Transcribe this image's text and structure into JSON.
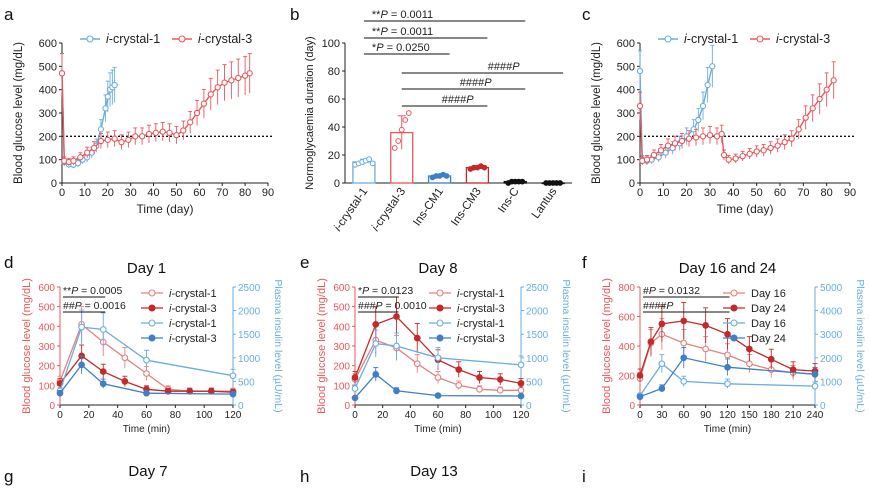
{
  "colors": {
    "red": "#e8585c",
    "blue": "#6aaee0",
    "darkred": "#c42a2a",
    "deepblue": "#3f7fc6",
    "pink": "#e68080",
    "black": "#111111",
    "axis": "#222222"
  },
  "chart_data": [
    {
      "id": "a",
      "panel_label": "a",
      "type": "line",
      "title": "",
      "xlabel": "Time (day)",
      "ylabel": "Blood glucose level (mg/dL)",
      "xlim": [
        0,
        90
      ],
      "ylim": [
        0,
        600
      ],
      "xticks": [
        "0",
        "10",
        "20",
        "30",
        "40",
        "50",
        "60",
        "70",
        "80",
        "90"
      ],
      "yticks": [
        "0",
        "100",
        "200",
        "300",
        "400",
        "500",
        "600"
      ],
      "xtick_values": [
        0,
        10,
        20,
        30,
        40,
        50,
        60,
        70,
        80,
        90
      ],
      "ytick_values": [
        0,
        100,
        200,
        300,
        400,
        500,
        600
      ],
      "threshold": 200,
      "legend": [
        "i-crystal-1",
        "i-crystal-3"
      ],
      "series": [
        {
          "name": "i-crystal-1",
          "color": "blue",
          "points": [
            [
              0,
              470
            ],
            [
              1,
              90
            ],
            [
              3,
              80
            ],
            [
              5,
              78
            ],
            [
              7,
              85
            ],
            [
              9,
              100
            ],
            [
              11,
              110
            ],
            [
              13,
              130
            ],
            [
              15,
              160
            ],
            [
              17,
              230
            ],
            [
              19,
              320
            ],
            [
              20,
              370
            ],
            [
              21,
              400
            ],
            [
              22,
              410
            ],
            [
              23,
              420
            ]
          ]
        },
        {
          "name": "i-crystal-3",
          "color": "red",
          "points": [
            [
              0,
              470
            ],
            [
              1,
              95
            ],
            [
              3,
              90
            ],
            [
              5,
              95
            ],
            [
              8,
              110
            ],
            [
              11,
              130
            ],
            [
              14,
              150
            ],
            [
              17,
              180
            ],
            [
              20,
              185
            ],
            [
              23,
              190
            ],
            [
              26,
              175
            ],
            [
              29,
              185
            ],
            [
              32,
              200
            ],
            [
              35,
              200
            ],
            [
              38,
              210
            ],
            [
              41,
              215
            ],
            [
              44,
              220
            ],
            [
              47,
              215
            ],
            [
              50,
              205
            ],
            [
              53,
              225
            ],
            [
              56,
              260
            ],
            [
              59,
              300
            ],
            [
              62,
              340
            ],
            [
              65,
              380
            ],
            [
              68,
              410
            ],
            [
              71,
              430
            ],
            [
              74,
              440
            ],
            [
              77,
              450
            ],
            [
              80,
              460
            ],
            [
              82,
              470
            ]
          ]
        }
      ]
    },
    {
      "id": "b",
      "panel_label": "b",
      "type": "bar",
      "ylabel": "Normoglycaemia duration (day)",
      "ylim": [
        0,
        100
      ],
      "yticks": [
        "0",
        "20",
        "40",
        "60",
        "80",
        "100"
      ],
      "ytick_values": [
        0,
        20,
        40,
        60,
        80,
        100
      ],
      "categories": [
        "i-crystal-1",
        "i-crystal-3",
        "Ins-CM1",
        "Ins-CM3",
        "Ins-C",
        "Lantus"
      ],
      "values": [
        15,
        36,
        5,
        11,
        1,
        0
      ],
      "errors": [
        2,
        12,
        1,
        1,
        0.5,
        0.3
      ],
      "bar_colors": [
        "blue",
        "red",
        "deepblue",
        "darkred",
        "black",
        "black"
      ],
      "dots": [
        [
          13,
          14,
          15,
          16,
          17,
          14
        ],
        [
          25,
          30,
          38,
          45,
          50
        ],
        [
          4,
          5,
          5,
          6,
          5
        ],
        [
          10,
          11,
          11,
          12,
          11
        ],
        [
          0,
          1,
          1,
          1,
          1
        ],
        [
          0,
          0,
          0,
          0,
          0
        ]
      ],
      "significance": [
        "**P = 0.0011",
        "**P = 0.0011",
        "*P = 0.0250",
        "####P",
        "####P",
        "####P"
      ]
    },
    {
      "id": "c",
      "panel_label": "c",
      "type": "line",
      "xlabel": "Time (day)",
      "ylabel": "Blood glucose level (mg/dL)",
      "xlim": [
        0,
        90
      ],
      "ylim": [
        0,
        600
      ],
      "xticks": [
        "0",
        "10",
        "20",
        "30",
        "40",
        "50",
        "60",
        "70",
        "80",
        "90"
      ],
      "yticks": [
        "0",
        "100",
        "200",
        "300",
        "400",
        "500",
        "600"
      ],
      "xtick_values": [
        0,
        10,
        20,
        30,
        40,
        50,
        60,
        70,
        80,
        90
      ],
      "ytick_values": [
        0,
        100,
        200,
        300,
        400,
        500,
        600
      ],
      "threshold": 200,
      "legend": [
        "i-crystal-1",
        "i-crystal-3"
      ],
      "series": [
        {
          "name": "i-crystal-1",
          "color": "blue",
          "points": [
            [
              0,
              480
            ],
            [
              1,
              100
            ],
            [
              3,
              95
            ],
            [
              5,
              100
            ],
            [
              8,
              110
            ],
            [
              11,
              130
            ],
            [
              14,
              150
            ],
            [
              17,
              170
            ],
            [
              20,
              200
            ],
            [
              23,
              230
            ],
            [
              25,
              270
            ],
            [
              27,
              330
            ],
            [
              29,
              420
            ],
            [
              31,
              500
            ]
          ]
        },
        {
          "name": "i-crystal-3",
          "color": "red",
          "points": [
            [
              0,
              330
            ],
            [
              1,
              95
            ],
            [
              3,
              100
            ],
            [
              6,
              120
            ],
            [
              9,
              140
            ],
            [
              12,
              160
            ],
            [
              15,
              170
            ],
            [
              18,
              180
            ],
            [
              21,
              190
            ],
            [
              24,
              195
            ],
            [
              27,
              200
            ],
            [
              30,
              205
            ],
            [
              33,
              200
            ],
            [
              35,
              210
            ],
            [
              36,
              120
            ],
            [
              38,
              100
            ],
            [
              41,
              105
            ],
            [
              44,
              115
            ],
            [
              47,
              125
            ],
            [
              50,
              135
            ],
            [
              53,
              140
            ],
            [
              56,
              150
            ],
            [
              59,
              160
            ],
            [
              62,
              175
            ],
            [
              65,
              190
            ],
            [
              68,
              230
            ],
            [
              71,
              280
            ],
            [
              74,
              320
            ],
            [
              77,
              360
            ],
            [
              80,
              400
            ],
            [
              83,
              440
            ]
          ]
        }
      ]
    },
    {
      "id": "d",
      "panel_label": "d",
      "type": "line",
      "title": "Day 1",
      "xlabel": "Time (min)",
      "ylabel": "Blood glucose level (mg/dL)",
      "ylabel2": "Plasma insulin level (µU/mL)",
      "xlim": [
        0,
        120
      ],
      "ylim": [
        0,
        600
      ],
      "ylim2": [
        0,
        2500
      ],
      "xticks": [
        "0",
        "20",
        "40",
        "60",
        "80",
        "100",
        "120"
      ],
      "xtick_values": [
        0,
        20,
        40,
        60,
        80,
        100,
        120
      ],
      "yticks": [
        "0",
        "100",
        "200",
        "300",
        "400",
        "500",
        "600"
      ],
      "ytick_values": [
        0,
        100,
        200,
        300,
        400,
        500,
        600
      ],
      "yticks2": [
        "0",
        "500",
        "1000",
        "1500",
        "2000",
        "2500"
      ],
      "ytick2_values": [
        0,
        500,
        1000,
        1500,
        2000,
        2500
      ],
      "annotations": [
        "**P = 0.0005",
        "##P = 0.0016"
      ],
      "legend": [
        "i-crystal-1",
        "i-crystal-3",
        "i-crystal-1",
        "i-crystal-3"
      ],
      "series": [
        {
          "name": "i-crystal-1",
          "color": "pink",
          "axis": "left",
          "filled": false,
          "x": [
            0,
            15,
            30,
            45,
            60,
            75,
            90,
            105,
            120
          ],
          "values": [
            120,
            410,
            320,
            240,
            160,
            80,
            70,
            70,
            70
          ]
        },
        {
          "name": "i-crystal-3",
          "color": "darkred",
          "axis": "left",
          "filled": true,
          "x": [
            0,
            15,
            30,
            45,
            60,
            75,
            90,
            105,
            120
          ],
          "values": [
            110,
            250,
            170,
            120,
            80,
            70,
            70,
            70,
            65
          ]
        },
        {
          "name": "i-crystal-1",
          "color": "blue",
          "axis": "right",
          "filled": false,
          "x": [
            0,
            15,
            30,
            60,
            120
          ],
          "values": [
            300,
            1650,
            1600,
            950,
            620
          ]
        },
        {
          "name": "i-crystal-3",
          "color": "deepblue",
          "axis": "right",
          "filled": true,
          "x": [
            0,
            15,
            30,
            60,
            120
          ],
          "values": [
            250,
            850,
            450,
            250,
            230
          ]
        }
      ]
    },
    {
      "id": "e",
      "panel_label": "e",
      "type": "line",
      "title": "Day 8",
      "xlabel": "Time (min)",
      "ylabel": "Blood glucose level (mg/dL)",
      "ylabel2": "Plasma insulin level (µU/mL)",
      "xlim": [
        0,
        120
      ],
      "ylim": [
        0,
        600
      ],
      "ylim2": [
        0,
        2500
      ],
      "xticks": [
        "0",
        "20",
        "40",
        "60",
        "80",
        "100",
        "120"
      ],
      "xtick_values": [
        0,
        20,
        40,
        60,
        80,
        100,
        120
      ],
      "yticks": [
        "0",
        "100",
        "200",
        "300",
        "400",
        "500",
        "600"
      ],
      "ytick_values": [
        0,
        100,
        200,
        300,
        400,
        500,
        600
      ],
      "yticks2": [
        "0",
        "500",
        "1000",
        "1500",
        "2000",
        "2500"
      ],
      "ytick2_values": [
        0,
        500,
        1000,
        1500,
        2000,
        2500
      ],
      "annotations": [
        "*P = 0.0123",
        "###P = 0.0010"
      ],
      "legend": [
        "i-crystal-1",
        "i-crystal-3",
        "i-crystal-1",
        "i-crystal-3"
      ],
      "series": [
        {
          "name": "i-crystal-1",
          "color": "pink",
          "axis": "left",
          "filled": false,
          "x": [
            0,
            15,
            30,
            45,
            60,
            75,
            90,
            105,
            120
          ],
          "values": [
            130,
            330,
            290,
            210,
            140,
            100,
            80,
            75,
            75
          ]
        },
        {
          "name": "i-crystal-3",
          "color": "darkred",
          "axis": "left",
          "filled": true,
          "x": [
            0,
            15,
            30,
            45,
            60,
            75,
            90,
            105,
            120
          ],
          "values": [
            140,
            410,
            450,
            340,
            230,
            180,
            140,
            130,
            110
          ]
        },
        {
          "name": "i-crystal-1",
          "color": "blue",
          "axis": "right",
          "filled": false,
          "x": [
            0,
            15,
            30,
            60,
            120
          ],
          "values": [
            350,
            1300,
            1250,
            1000,
            850
          ]
        },
        {
          "name": "i-crystal-3",
          "color": "deepblue",
          "axis": "right",
          "filled": true,
          "x": [
            0,
            15,
            30,
            60,
            120
          ],
          "values": [
            150,
            650,
            300,
            200,
            190
          ]
        }
      ]
    },
    {
      "id": "f",
      "panel_label": "f",
      "type": "line",
      "title": "Day 16 and 24",
      "xlabel": "Time (min)",
      "ylabel": "Blood glucose level (mg/dL)",
      "ylabel2": "Plasma insulin level (µU/mL)",
      "xlim": [
        0,
        240
      ],
      "ylim": [
        0,
        800
      ],
      "ylim2": [
        0,
        5000
      ],
      "xticks": [
        "0",
        "30",
        "60",
        "90",
        "120",
        "150",
        "180",
        "210",
        "240"
      ],
      "xtick_values": [
        0,
        30,
        60,
        90,
        120,
        150,
        180,
        210,
        240
      ],
      "yticks": [
        "0",
        "200",
        "400",
        "600",
        "800"
      ],
      "ytick_values": [
        0,
        200,
        400,
        600,
        800
      ],
      "yticks2": [
        "0",
        "1000",
        "2000",
        "3000",
        "4000",
        "5000"
      ],
      "ytick2_values": [
        0,
        1000,
        2000,
        3000,
        4000,
        5000
      ],
      "annotations": [
        "#P = 0.0132",
        "####P"
      ],
      "legend": [
        "Day 16",
        "Day 24",
        "Day 16",
        "Day 24"
      ],
      "series": [
        {
          "name": "Day 16",
          "color": "pink",
          "axis": "left",
          "filled": false,
          "x": [
            0,
            15,
            30,
            60,
            90,
            120,
            150,
            180,
            210,
            240
          ],
          "values": [
            180,
            420,
            480,
            420,
            380,
            340,
            280,
            240,
            220,
            210
          ]
        },
        {
          "name": "Day 24",
          "color": "darkred",
          "axis": "left",
          "filled": true,
          "x": [
            0,
            15,
            30,
            60,
            90,
            120,
            150,
            180,
            210,
            240
          ],
          "values": [
            200,
            430,
            550,
            570,
            540,
            480,
            380,
            310,
            240,
            230
          ]
        },
        {
          "name": "Day 16",
          "color": "blue",
          "axis": "right",
          "filled": false,
          "x": [
            0,
            30,
            60,
            120,
            240
          ],
          "values": [
            400,
            1750,
            1000,
            900,
            800
          ]
        },
        {
          "name": "Day 24",
          "color": "deepblue",
          "axis": "right",
          "filled": true,
          "x": [
            0,
            30,
            60,
            120,
            240
          ],
          "values": [
            350,
            700,
            2000,
            1600,
            1300
          ]
        }
      ]
    },
    {
      "id": "g",
      "panel_label": "g",
      "type": "line",
      "title": "Day 7",
      "series": []
    },
    {
      "id": "h",
      "panel_label": "h",
      "type": "line",
      "title": "Day 13",
      "series": []
    },
    {
      "id": "i",
      "panel_label": "i",
      "type": "line",
      "title": "",
      "series": []
    }
  ]
}
